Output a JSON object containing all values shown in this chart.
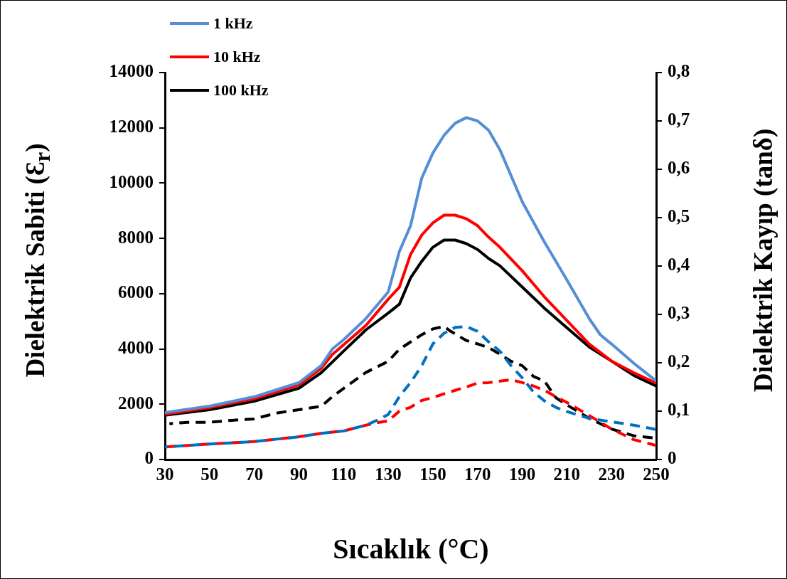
{
  "chart_data": {
    "type": "line",
    "xlabel": "Sıcaklık (°C)",
    "ylabel": "Dielektrik Sabiti (Ɛ$_{r}$)",
    "y2label": "Dielektrik Kayıp (tanδ)",
    "xlim": [
      30,
      250
    ],
    "xticks": [
      30,
      50,
      70,
      90,
      110,
      130,
      150,
      170,
      190,
      210,
      230,
      250
    ],
    "ylim": [
      0,
      14000
    ],
    "yticks": [
      0,
      2000,
      4000,
      6000,
      8000,
      10000,
      12000,
      14000
    ],
    "y2lim": [
      0,
      0.8
    ],
    "y2ticks": [
      {
        "value": 0,
        "label": "0"
      },
      {
        "value": 0.1,
        "label": "0,1"
      },
      {
        "value": 0.2,
        "label": "0,2"
      },
      {
        "value": 0.3,
        "label": "0,3"
      },
      {
        "value": 0.4,
        "label": "0,4"
      },
      {
        "value": 0.5,
        "label": "0,5"
      },
      {
        "value": 0.6,
        "label": "0,6"
      },
      {
        "value": 0.7,
        "label": "0,7"
      },
      {
        "value": 0.8,
        "label": "0,8"
      }
    ],
    "grid": false,
    "legend": "top left",
    "marker": "none",
    "series": [
      {
        "name": "1 kHz",
        "color": "#558ed5",
        "line_style": "solid",
        "x": [
          30,
          50,
          70,
          90,
          100,
          105,
          110,
          120,
          130,
          135,
          140,
          145,
          150,
          155,
          160,
          165,
          170,
          175,
          180,
          190,
          200,
          210,
          220,
          225,
          230,
          240,
          250
        ],
        "values": [
          1700,
          1930,
          2270,
          2780,
          3400,
          4000,
          4330,
          5100,
          6060,
          7530,
          8460,
          10180,
          11090,
          11730,
          12170,
          12370,
          12250,
          11910,
          11210,
          9330,
          7860,
          6500,
          5100,
          4510,
          4180,
          3480,
          2840
        ]
      },
      {
        "name": "10 kHz",
        "color": "#ff0000",
        "line_style": "solid",
        "x": [
          30,
          50,
          70,
          90,
          100,
          105,
          110,
          120,
          130,
          135,
          140,
          145,
          150,
          155,
          160,
          165,
          170,
          175,
          180,
          190,
          200,
          210,
          220,
          230,
          240,
          250
        ],
        "values": [
          1640,
          1880,
          2200,
          2700,
          3300,
          3800,
          4150,
          4850,
          5800,
          6240,
          7420,
          8120,
          8560,
          8840,
          8840,
          8710,
          8460,
          8040,
          7680,
          6830,
          5880,
          5030,
          4180,
          3560,
          3140,
          2760
        ]
      },
      {
        "name": "100 kHz",
        "color": "#000000",
        "line_style": "solid",
        "x": [
          30,
          50,
          70,
          90,
          100,
          105,
          110,
          120,
          130,
          135,
          140,
          145,
          150,
          155,
          160,
          165,
          170,
          175,
          180,
          190,
          200,
          210,
          220,
          230,
          240,
          250
        ],
        "values": [
          1600,
          1800,
          2110,
          2580,
          3140,
          3530,
          3920,
          4690,
          5300,
          5620,
          6570,
          7170,
          7680,
          7940,
          7940,
          7810,
          7600,
          7270,
          7010,
          6240,
          5470,
          4770,
          4070,
          3560,
          3040,
          2660
        ]
      },
      {
        "color": "#0070c0",
        "line_style": "dashed",
        "axis": "y2",
        "x": [
          30,
          50,
          70,
          90,
          100,
          110,
          120,
          125,
          130,
          135,
          140,
          145,
          150,
          155,
          160,
          165,
          170,
          175,
          180,
          185,
          190,
          195,
          200,
          205,
          210,
          220,
          230,
          240,
          250
        ],
        "values": [
          0.026,
          0.032,
          0.037,
          0.047,
          0.054,
          0.059,
          0.071,
          0.081,
          0.093,
          0.13,
          0.159,
          0.194,
          0.239,
          0.261,
          0.273,
          0.275,
          0.265,
          0.243,
          0.224,
          0.194,
          0.169,
          0.14,
          0.121,
          0.108,
          0.099,
          0.085,
          0.078,
          0.071,
          0.062
        ]
      },
      {
        "color": "#ff0000",
        "line_style": "dashed",
        "axis": "y2",
        "x": [
          30,
          50,
          70,
          90,
          100,
          110,
          120,
          125,
          130,
          135,
          140,
          145,
          150,
          155,
          160,
          165,
          170,
          175,
          180,
          185,
          190,
          195,
          200,
          205,
          210,
          220,
          230,
          240,
          250
        ],
        "values": [
          0.026,
          0.032,
          0.037,
          0.047,
          0.054,
          0.059,
          0.071,
          0.076,
          0.08,
          0.1,
          0.108,
          0.122,
          0.128,
          0.136,
          0.143,
          0.15,
          0.158,
          0.159,
          0.162,
          0.165,
          0.159,
          0.152,
          0.143,
          0.13,
          0.118,
          0.091,
          0.063,
          0.041,
          0.029
        ]
      },
      {
        "color": "#000000",
        "line_style": "dashed",
        "axis": "y2",
        "x": [
          32,
          40,
          50,
          60,
          70,
          80,
          90,
          100,
          105,
          110,
          120,
          130,
          135,
          140,
          145,
          150,
          155,
          158,
          165,
          170,
          175,
          180,
          185,
          190,
          195,
          200,
          205,
          210,
          220,
          230,
          240,
          250
        ],
        "values": [
          0.074,
          0.077,
          0.077,
          0.081,
          0.084,
          0.096,
          0.103,
          0.11,
          0.13,
          0.147,
          0.18,
          0.203,
          0.228,
          0.243,
          0.258,
          0.27,
          0.275,
          0.265,
          0.246,
          0.239,
          0.231,
          0.218,
          0.203,
          0.194,
          0.172,
          0.162,
          0.128,
          0.113,
          0.085,
          0.063,
          0.049,
          0.044
        ]
      }
    ]
  }
}
